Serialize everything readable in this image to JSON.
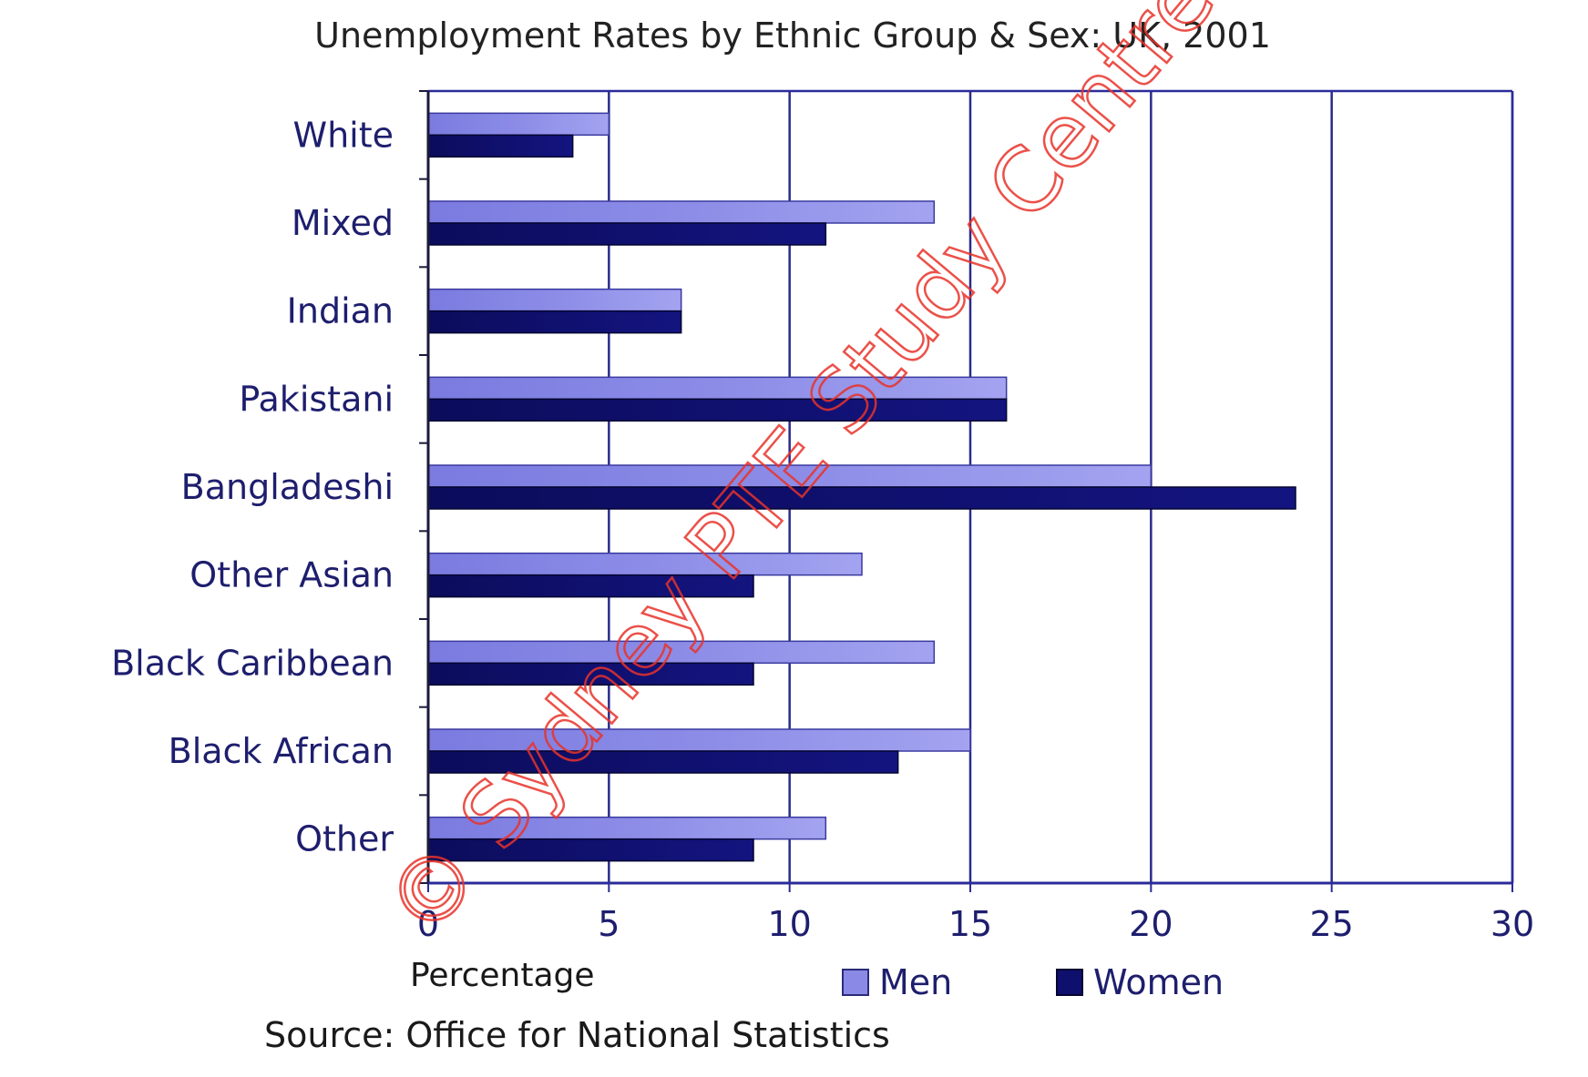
{
  "chart_data": {
    "type": "bar",
    "orientation": "horizontal",
    "title": "Unemployment Rates by Ethnic Group & Sex: UK, 2001",
    "xlabel": "Percentage",
    "ylabel": "",
    "xlim": [
      0,
      30
    ],
    "xticks": [
      "0",
      "5",
      "10",
      "15",
      "20",
      "25",
      "30"
    ],
    "grid": true,
    "legend_position": "bottom",
    "categories": [
      "White",
      "Mixed",
      "Indian",
      "Pakistani",
      "Bangladeshi",
      "Other Asian",
      "Black Caribbean",
      "Black African",
      "Other"
    ],
    "series": [
      {
        "name": "Men",
        "color": "#8a8ae6",
        "values": [
          5,
          14,
          7,
          16,
          20,
          12,
          14,
          15,
          11
        ]
      },
      {
        "name": "Women",
        "color": "#0f0f6e",
        "values": [
          4,
          11,
          7,
          16,
          24,
          9,
          9,
          13,
          9
        ]
      }
    ],
    "source": "Source: Office for National Statistics"
  },
  "watermark": "© Sydney PTE Study Centre",
  "colors": {
    "axis": "#2b2b9a",
    "grid": "#2b2b8a",
    "text": "#1e1e6e"
  }
}
